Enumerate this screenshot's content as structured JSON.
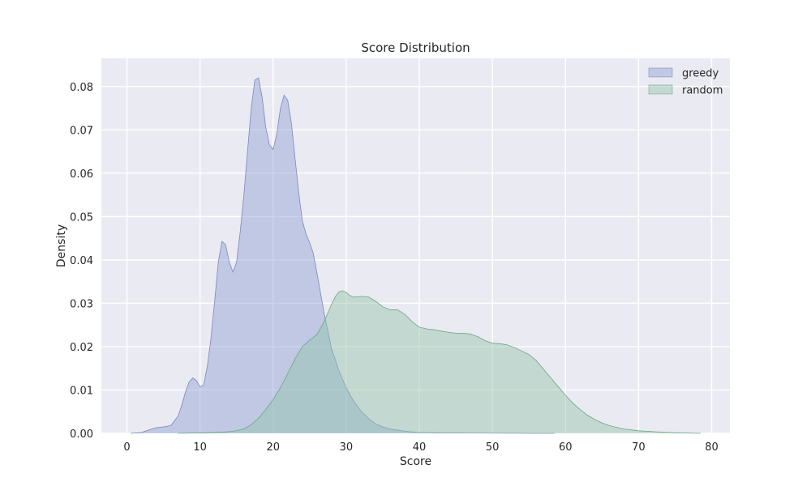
{
  "chart_data": {
    "type": "area",
    "title": "Score Distribution",
    "xlabel": "Score",
    "ylabel": "Density",
    "xlim": [
      -3.5,
      82.5
    ],
    "ylim": [
      0,
      0.0865
    ],
    "xticks": [
      0,
      10,
      20,
      30,
      40,
      50,
      60,
      70,
      80
    ],
    "yticks": [
      0.0,
      0.01,
      0.02,
      0.03,
      0.04,
      0.05,
      0.06,
      0.07,
      0.08
    ],
    "ytick_labels": [
      "0.00",
      "0.01",
      "0.02",
      "0.03",
      "0.04",
      "0.05",
      "0.06",
      "0.07",
      "0.08"
    ],
    "grid": true,
    "legend_position": "top-right",
    "series": [
      {
        "name": "greedy",
        "fill": "#8e9fd3",
        "stroke": "#6f7fb8",
        "x": [
          0.5,
          2,
          3,
          4,
          5,
          6,
          7,
          7.5,
          8,
          8.5,
          9,
          9.5,
          10,
          10.5,
          11,
          11.5,
          12,
          12.5,
          13,
          13.5,
          14,
          14.5,
          15,
          15.5,
          16,
          16.5,
          17,
          17.5,
          18,
          18.5,
          19,
          19.5,
          20,
          20.5,
          21,
          21.5,
          22,
          22.5,
          23,
          23.5,
          24,
          24.5,
          25,
          25.5,
          26,
          27,
          28,
          29,
          30,
          31,
          32,
          33,
          34,
          35,
          36,
          38,
          40,
          45,
          50,
          55,
          58.5
        ],
        "y": [
          0.0,
          0.0002,
          0.0008,
          0.0013,
          0.0015,
          0.0018,
          0.004,
          0.0065,
          0.0095,
          0.0118,
          0.0128,
          0.0122,
          0.0107,
          0.0112,
          0.0155,
          0.022,
          0.0305,
          0.0395,
          0.0443,
          0.0435,
          0.0395,
          0.0372,
          0.0395,
          0.0465,
          0.055,
          0.065,
          0.075,
          0.0815,
          0.082,
          0.0775,
          0.0705,
          0.0665,
          0.0655,
          0.069,
          0.075,
          0.078,
          0.0768,
          0.0715,
          0.0635,
          0.0555,
          0.049,
          0.046,
          0.044,
          0.0415,
          0.037,
          0.0275,
          0.0195,
          0.0145,
          0.0105,
          0.0075,
          0.0052,
          0.0035,
          0.0022,
          0.0015,
          0.001,
          0.0005,
          0.0002,
          0.0001,
          5e-05,
          0.0,
          0.0
        ]
      },
      {
        "name": "random",
        "fill": "#93c4a6",
        "stroke": "#5fa27a",
        "x": [
          7,
          10,
          12,
          14,
          15,
          16,
          17,
          18,
          19,
          20,
          21,
          22,
          23,
          24,
          25,
          26,
          27,
          27.5,
          28,
          28.5,
          29,
          29.5,
          30,
          30.5,
          31,
          32,
          33,
          34,
          35,
          36,
          37,
          38,
          39,
          40,
          41,
          42,
          43,
          44,
          45,
          46,
          47,
          48,
          49,
          50,
          51,
          52,
          53,
          54,
          55,
          56,
          57,
          58,
          59,
          60,
          61,
          62,
          63,
          64,
          65,
          66,
          68,
          70,
          72,
          74,
          76,
          78.5
        ],
        "y": [
          0.0,
          0.0001,
          0.0002,
          0.0004,
          0.0006,
          0.001,
          0.002,
          0.0035,
          0.0055,
          0.0078,
          0.0105,
          0.0138,
          0.0172,
          0.02,
          0.0215,
          0.0228,
          0.0258,
          0.0278,
          0.0298,
          0.0315,
          0.0326,
          0.0329,
          0.0325,
          0.0318,
          0.0314,
          0.0316,
          0.0315,
          0.0305,
          0.0292,
          0.0285,
          0.0285,
          0.0275,
          0.0258,
          0.0245,
          0.0241,
          0.0239,
          0.0236,
          0.0233,
          0.0231,
          0.0231,
          0.0229,
          0.0223,
          0.0214,
          0.0208,
          0.0207,
          0.0204,
          0.0198,
          0.019,
          0.0182,
          0.0168,
          0.0148,
          0.0128,
          0.0108,
          0.0088,
          0.007,
          0.0055,
          0.0042,
          0.0032,
          0.0024,
          0.0018,
          0.001,
          0.0006,
          0.0004,
          0.0002,
          0.0001,
          0.0
        ]
      }
    ]
  }
}
